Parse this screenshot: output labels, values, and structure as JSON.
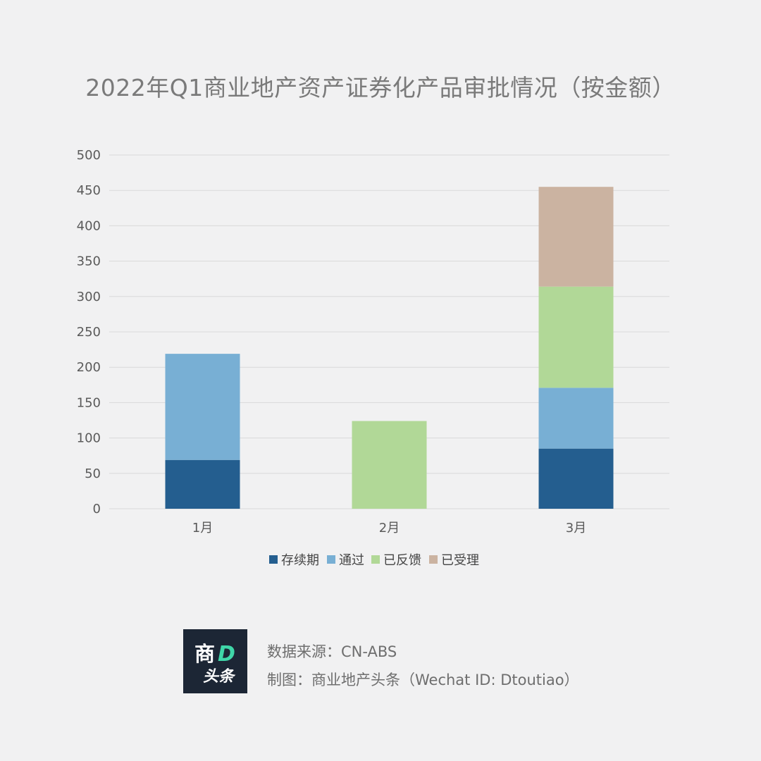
{
  "chart_data": {
    "type": "bar",
    "stacked": true,
    "title": "2022年Q1商业地产资产证券化产品审批情况（按金额）",
    "categories": [
      "1月",
      "2月",
      "3月"
    ],
    "series": [
      {
        "name": "存续期",
        "color": "#245e8f",
        "values": [
          69,
          0,
          85
        ]
      },
      {
        "name": "通过",
        "color": "#78afd4",
        "values": [
          150,
          0,
          86
        ]
      },
      {
        "name": "已反馈",
        "color": "#b1d897",
        "values": [
          0,
          124,
          143
        ]
      },
      {
        "name": "已受理",
        "color": "#cbb3a1",
        "values": [
          0,
          0,
          141
        ]
      }
    ],
    "ylim": [
      0,
      500
    ],
    "yticks": [
      0,
      50,
      100,
      150,
      200,
      250,
      300,
      350,
      400,
      450,
      500
    ],
    "grid": true,
    "legend_position": "bottom",
    "gridline_color": "#d9d9d9"
  },
  "footer": {
    "logo_text_top": "商",
    "logo_text_accent": "D",
    "logo_text_bottom": "头条",
    "logo_accent_color": "#3fd6a8",
    "source": "数据来源：CN-ABS",
    "credit": "制图：商业地产头条（Wechat ID: Dtoutiao）"
  }
}
